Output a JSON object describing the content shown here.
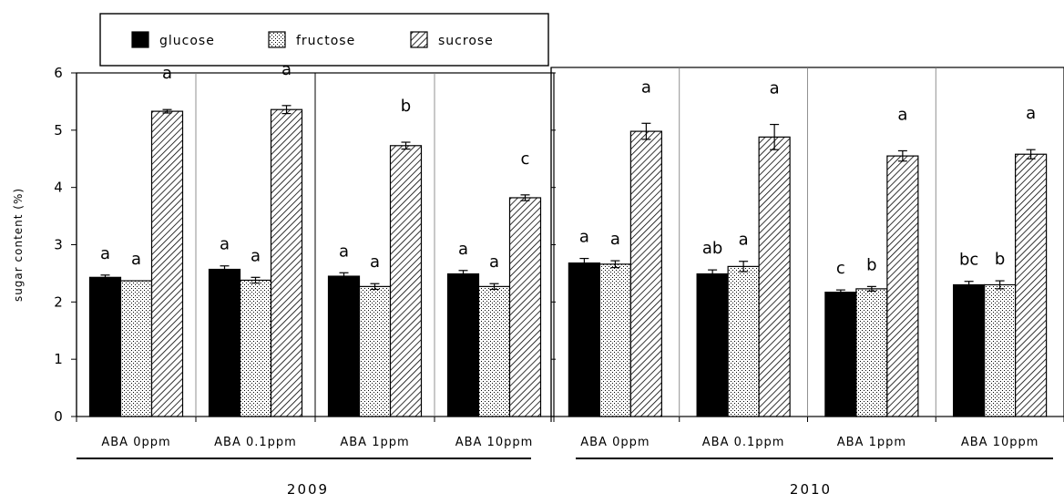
{
  "chart_data": {
    "type": "bar",
    "ylabel": "sugar content (%)",
    "ylim": [
      0,
      6
    ],
    "yticks": [
      "0",
      "1",
      "2",
      "3",
      "4",
      "5",
      "6"
    ],
    "legend": {
      "placement": "top-left",
      "entries": [
        {
          "name": "glucose",
          "pattern": "solid",
          "color": "#000000"
        },
        {
          "name": "fructose",
          "pattern": "dots",
          "color": "#000000"
        },
        {
          "name": "sucrose",
          "pattern": "diagonal-hatch",
          "color": "#000000"
        }
      ]
    },
    "groups": [
      {
        "year": "2009",
        "categories": [
          "ABA 0ppm",
          "ABA 0.1ppm",
          "ABA 1ppm",
          "ABA 10ppm"
        ],
        "series": [
          {
            "name": "glucose",
            "values": [
              2.43,
              2.57,
              2.45,
              2.49
            ],
            "errors": [
              0.04,
              0.06,
              0.06,
              0.06
            ],
            "letters": [
              "a",
              "a",
              "a",
              "a"
            ]
          },
          {
            "name": "fructose",
            "values": [
              2.37,
              2.38,
              2.27,
              2.27
            ],
            "errors": [
              0.0,
              0.05,
              0.05,
              0.05
            ],
            "letters": [
              "a",
              "a",
              "a",
              "a"
            ]
          },
          {
            "name": "sucrose",
            "values": [
              5.33,
              5.36,
              4.73,
              3.82
            ],
            "errors": [
              0.03,
              0.07,
              0.06,
              0.05
            ],
            "letters": [
              "a",
              "a",
              "b",
              "c"
            ]
          }
        ]
      },
      {
        "year": "2010",
        "categories": [
          "ABA 0ppm",
          "ABA 0.1ppm",
          "ABA 1ppm",
          "ABA 10ppm"
        ],
        "series": [
          {
            "name": "glucose",
            "values": [
              2.68,
              2.49,
              2.17,
              2.3
            ],
            "errors": [
              0.08,
              0.07,
              0.04,
              0.06
            ],
            "letters": [
              "a",
              "ab",
              "c",
              "bc"
            ]
          },
          {
            "name": "fructose",
            "values": [
              2.66,
              2.62,
              2.23,
              2.3
            ],
            "errors": [
              0.06,
              0.09,
              0.04,
              0.07
            ],
            "letters": [
              "a",
              "a",
              "b",
              "b"
            ]
          },
          {
            "name": "sucrose",
            "values": [
              4.98,
              4.88,
              4.55,
              4.58
            ],
            "errors": [
              0.14,
              0.22,
              0.09,
              0.08
            ],
            "letters": [
              "a",
              "a",
              "a",
              "a"
            ]
          }
        ]
      }
    ]
  }
}
